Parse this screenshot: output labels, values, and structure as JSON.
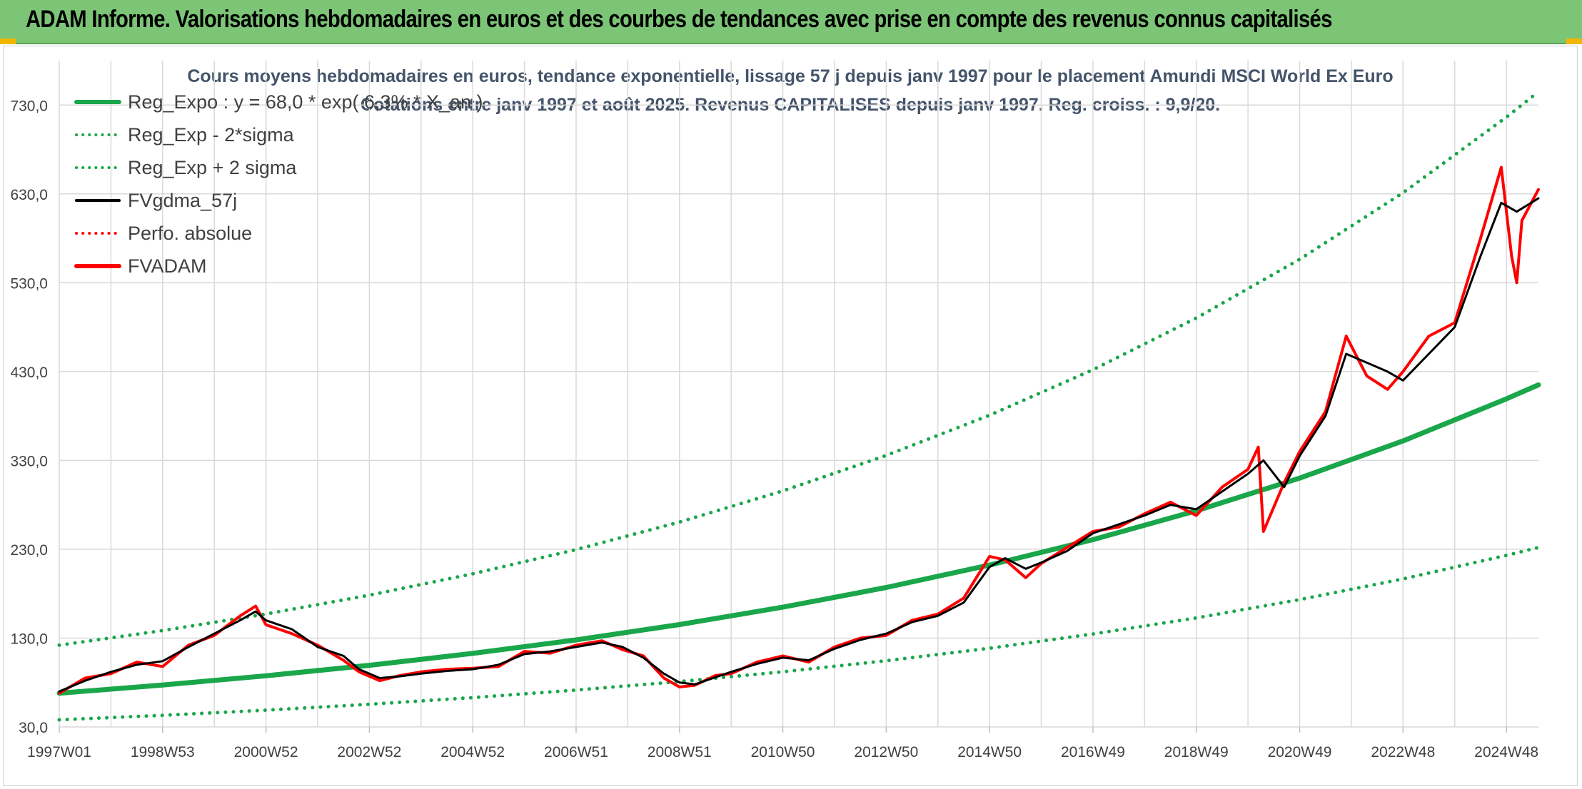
{
  "header": {
    "title": "ADAM Informe. Valorisations hebdomadaires en euros et des courbes de tendances avec prise en compte des revenus connus capitalisés"
  },
  "colors": {
    "header_bg": "#7cc576",
    "regression": "#1aa64a",
    "price": "#ff0000",
    "smoothed": "#000000",
    "grid": "#d9d9d9"
  },
  "chart_data": {
    "type": "line",
    "title": "Cours moyens hebdomadaires en euros, tendance exponentielle, lissage 57 j depuis janv 1997 pour le placement Amundi MSCI World Ex Euro",
    "subtitle": "Cotations entre janv 1997 et août 2025. Revenus CAPITALISES depuis janv 1997. Reg. croiss. : 9,9/20.",
    "xlabel": "",
    "ylabel": "",
    "x_range": [
      1997.0,
      2025.62
    ],
    "y_range": [
      30,
      780
    ],
    "y_ticks": [
      30,
      130,
      230,
      330,
      430,
      530,
      630,
      730
    ],
    "y_tick_labels": [
      "30,0",
      "130,0",
      "230,0",
      "330,0",
      "430,0",
      "530,0",
      "630,0",
      "730,0"
    ],
    "x_ticks": [
      {
        "label": "1997W01",
        "x": 1997.0
      },
      {
        "label": "1998W53",
        "x": 1999.0
      },
      {
        "label": "2000W52",
        "x": 2001.0
      },
      {
        "label": "2002W52",
        "x": 2003.0
      },
      {
        "label": "2004W52",
        "x": 2005.0
      },
      {
        "label": "2006W51",
        "x": 2007.0
      },
      {
        "label": "2008W51",
        "x": 2009.0
      },
      {
        "label": "2010W50",
        "x": 2011.0
      },
      {
        "label": "2012W50",
        "x": 2013.0
      },
      {
        "label": "2014W50",
        "x": 2015.0
      },
      {
        "label": "2016W49",
        "x": 2017.0
      },
      {
        "label": "2018W49",
        "x": 2019.0
      },
      {
        "label": "2020W49",
        "x": 2021.0
      },
      {
        "label": "2022W48",
        "x": 2023.0
      },
      {
        "label": "2024W48",
        "x": 2025.0
      }
    ],
    "grid": true,
    "legend_position": "top-left",
    "series": [
      {
        "name": "Reg_Expo : y = 68,0 * exp( 6,3% *  X_an )",
        "style": "solid-thick",
        "color": "#1aa64a",
        "x": [
          1997.0,
          1999.0,
          2001.0,
          2003.0,
          2005.0,
          2007.0,
          2009.0,
          2011.0,
          2013.0,
          2015.0,
          2017.0,
          2019.0,
          2021.0,
          2023.0,
          2025.0,
          2025.62
        ],
        "values": [
          68.0,
          77.2,
          87.6,
          99.4,
          112.8,
          128.0,
          145.2,
          164.8,
          187.0,
          212.2,
          240.8,
          273.3,
          310.1,
          351.9,
          399.3,
          415.0
        ]
      },
      {
        "name": "Reg_Exp - 2*sigma",
        "style": "dotted",
        "color": "#1aa64a",
        "x": [
          1997.0,
          1999.0,
          2001.0,
          2003.0,
          2005.0,
          2007.0,
          2009.0,
          2011.0,
          2013.0,
          2015.0,
          2017.0,
          2019.0,
          2021.0,
          2023.0,
          2025.0,
          2025.62
        ],
        "values": [
          38.0,
          43.1,
          48.9,
          55.5,
          63.0,
          71.5,
          81.1,
          92.1,
          104.5,
          118.6,
          134.6,
          152.7,
          173.3,
          196.6,
          223.1,
          232.0
        ]
      },
      {
        "name": "Reg_Exp + 2 sigma",
        "style": "dotted",
        "color": "#1aa64a",
        "x": [
          1997.0,
          1999.0,
          2001.0,
          2003.0,
          2005.0,
          2007.0,
          2009.0,
          2011.0,
          2013.0,
          2015.0,
          2017.0,
          2019.0,
          2021.0,
          2023.0,
          2025.0,
          2025.62
        ],
        "values": [
          122.0,
          138.5,
          157.1,
          178.3,
          202.4,
          229.6,
          260.6,
          295.7,
          335.6,
          380.8,
          432.1,
          490.3,
          556.4,
          631.3,
          716.4,
          745.0
        ]
      },
      {
        "name": "FVgdma_57j",
        "style": "solid",
        "color": "#000000",
        "x": [
          1997.0,
          1997.5,
          1998.0,
          1998.5,
          1999.0,
          1999.5,
          2000.0,
          2000.5,
          2000.8,
          2001.0,
          2001.5,
          2002.0,
          2002.5,
          2002.8,
          2003.2,
          2003.6,
          2004.0,
          2004.5,
          2005.0,
          2005.5,
          2006.0,
          2006.5,
          2007.0,
          2007.5,
          2007.9,
          2008.3,
          2008.7,
          2009.0,
          2009.3,
          2009.7,
          2010.0,
          2010.5,
          2011.0,
          2011.5,
          2012.0,
          2012.5,
          2013.0,
          2013.5,
          2014.0,
          2014.5,
          2015.0,
          2015.3,
          2015.7,
          2016.0,
          2016.5,
          2017.0,
          2017.5,
          2018.0,
          2018.5,
          2019.0,
          2019.5,
          2020.0,
          2020.3,
          2020.7,
          2021.0,
          2021.5,
          2021.9,
          2022.3,
          2022.7,
          2023.0,
          2023.5,
          2024.0,
          2024.5,
          2024.9,
          2025.2,
          2025.62
        ],
        "values": [
          70,
          82,
          92,
          100,
          104,
          120,
          135,
          150,
          160,
          150,
          140,
          120,
          110,
          95,
          85,
          87,
          90,
          93,
          95,
          100,
          112,
          115,
          120,
          125,
          120,
          108,
          90,
          80,
          78,
          86,
          92,
          101,
          108,
          105,
          118,
          128,
          135,
          148,
          155,
          170,
          210,
          220,
          208,
          215,
          228,
          248,
          258,
          268,
          280,
          275,
          295,
          315,
          330,
          300,
          335,
          380,
          450,
          440,
          430,
          420,
          450,
          480,
          560,
          620,
          610,
          625
        ]
      },
      {
        "name": "Perfo. absolue",
        "style": "dotted",
        "color": "#ff0000",
        "x": [],
        "values": []
      },
      {
        "name": "FVADAM",
        "style": "solid-thick",
        "color": "#ff0000",
        "x": [
          1997.0,
          1997.5,
          1998.0,
          1998.5,
          1999.0,
          1999.5,
          2000.0,
          2000.5,
          2000.8,
          2001.0,
          2001.5,
          2002.0,
          2002.5,
          2002.8,
          2003.2,
          2003.6,
          2004.0,
          2004.5,
          2005.0,
          2005.5,
          2006.0,
          2006.5,
          2007.0,
          2007.5,
          2007.9,
          2008.3,
          2008.7,
          2009.0,
          2009.3,
          2009.7,
          2010.0,
          2010.5,
          2011.0,
          2011.5,
          2012.0,
          2012.5,
          2013.0,
          2013.5,
          2014.0,
          2014.5,
          2015.0,
          2015.3,
          2015.7,
          2016.0,
          2016.5,
          2017.0,
          2017.5,
          2018.0,
          2018.5,
          2019.0,
          2019.5,
          2020.0,
          2020.2,
          2020.3,
          2020.7,
          2021.0,
          2021.5,
          2021.9,
          2022.3,
          2022.7,
          2023.0,
          2023.5,
          2024.0,
          2024.5,
          2024.9,
          2025.1,
          2025.2,
          2025.3,
          2025.62
        ],
        "values": [
          68,
          85,
          90,
          103,
          98,
          122,
          133,
          155,
          166,
          145,
          135,
          122,
          105,
          92,
          82,
          88,
          92,
          95,
          96,
          98,
          115,
          113,
          122,
          127,
          117,
          110,
          85,
          75,
          77,
          88,
          90,
          103,
          110,
          103,
          120,
          130,
          133,
          150,
          157,
          175,
          222,
          218,
          198,
          214,
          232,
          250,
          255,
          270,
          283,
          268,
          300,
          320,
          345,
          250,
          305,
          340,
          385,
          470,
          425,
          410,
          430,
          470,
          485,
          580,
          660,
          560,
          530,
          600,
          635
        ]
      }
    ]
  }
}
